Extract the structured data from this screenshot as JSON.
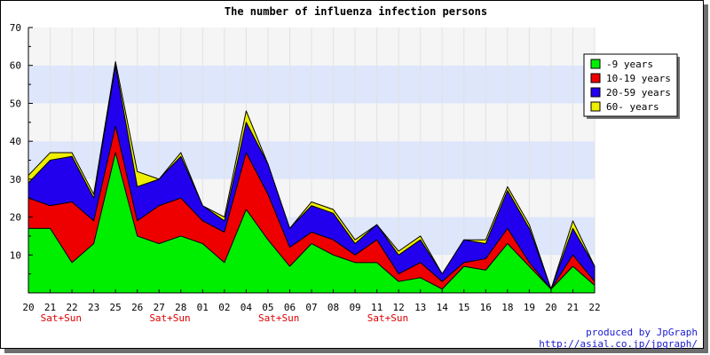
{
  "chart_data": {
    "type": "area",
    "stacked": true,
    "title": "The number of influenza infection persons",
    "xlabel": "",
    "ylabel": "",
    "categories": [
      "20",
      "21",
      "22",
      "23",
      "25",
      "26",
      "27",
      "28",
      "01",
      "02",
      "04",
      "05",
      "06",
      "07",
      "08",
      "09",
      "11",
      "12",
      "13",
      "14",
      "15",
      "16",
      "18",
      "19",
      "20",
      "21",
      "22"
    ],
    "weekend_markers": [
      {
        "after_category_index": 1,
        "label": "Sat+Sun"
      },
      {
        "after_category_index": 6,
        "label": "Sat+Sun"
      },
      {
        "after_category_index": 11,
        "label": "Sat+Sun"
      },
      {
        "after_category_index": 16,
        "label": "Sat+Sun"
      }
    ],
    "series": [
      {
        "name": "-9 years",
        "color": "#00ee00",
        "values": [
          17,
          17,
          8,
          13,
          37,
          15,
          13,
          15,
          13,
          8,
          22,
          14,
          7,
          13,
          10,
          8,
          8,
          3,
          4,
          1,
          7,
          6,
          13,
          7,
          1,
          7,
          2
        ]
      },
      {
        "name": "10-19 years",
        "color": "#ee0000",
        "values": [
          8,
          6,
          16,
          6,
          7,
          4,
          10,
          10,
          6,
          8,
          15,
          12,
          5,
          3,
          4,
          2,
          6,
          2,
          4,
          2,
          1,
          3,
          4,
          1,
          0,
          3,
          1
        ]
      },
      {
        "name": "20-59 years",
        "color": "#2200ee",
        "values": [
          4,
          12,
          12,
          6,
          16,
          9,
          7,
          11,
          4,
          3,
          8,
          8,
          5,
          7,
          7,
          3,
          4,
          5,
          6,
          2,
          6,
          4,
          10,
          9,
          0,
          7,
          4
        ]
      },
      {
        "name": "60- years",
        "color": "#eeee00",
        "values": [
          2,
          2,
          1,
          1,
          1,
          4,
          0,
          1,
          0,
          1,
          3,
          0,
          0,
          1,
          1,
          1,
          0,
          1,
          1,
          0,
          0,
          1,
          1,
          1,
          0,
          2,
          0
        ]
      }
    ],
    "ylim": [
      0,
      70
    ],
    "y_ticks": [
      10,
      20,
      30,
      40,
      50,
      60,
      70
    ],
    "grid": true,
    "grid_band_colors": [
      "#f5f5f5",
      "#dde6fb"
    ],
    "legend_position": "top-right"
  },
  "credits": {
    "line1": "produced by JpGraph",
    "line2": "http://asial.co.jp/jpgraph/"
  }
}
